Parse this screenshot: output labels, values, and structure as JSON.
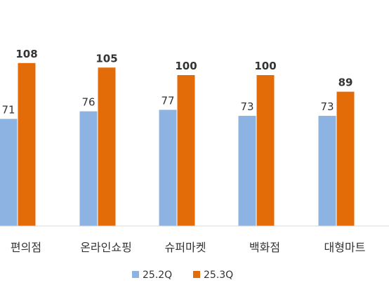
{
  "chart_data": {
    "type": "bar",
    "categories": [
      "편의점",
      "온라인쇼핑",
      "슈퍼마켓",
      "백화점",
      "대형마트"
    ],
    "series": [
      {
        "name": "25.2Q",
        "values": [
          71,
          76,
          77,
          73,
          73
        ],
        "color": "#8db3e2"
      },
      {
        "name": "25.3Q",
        "values": [
          108,
          105,
          100,
          100,
          89
        ],
        "color": "#e36c09"
      }
    ],
    "legend_position": "bottom",
    "grid": false,
    "title": "",
    "xlabel": "",
    "ylabel": ""
  }
}
